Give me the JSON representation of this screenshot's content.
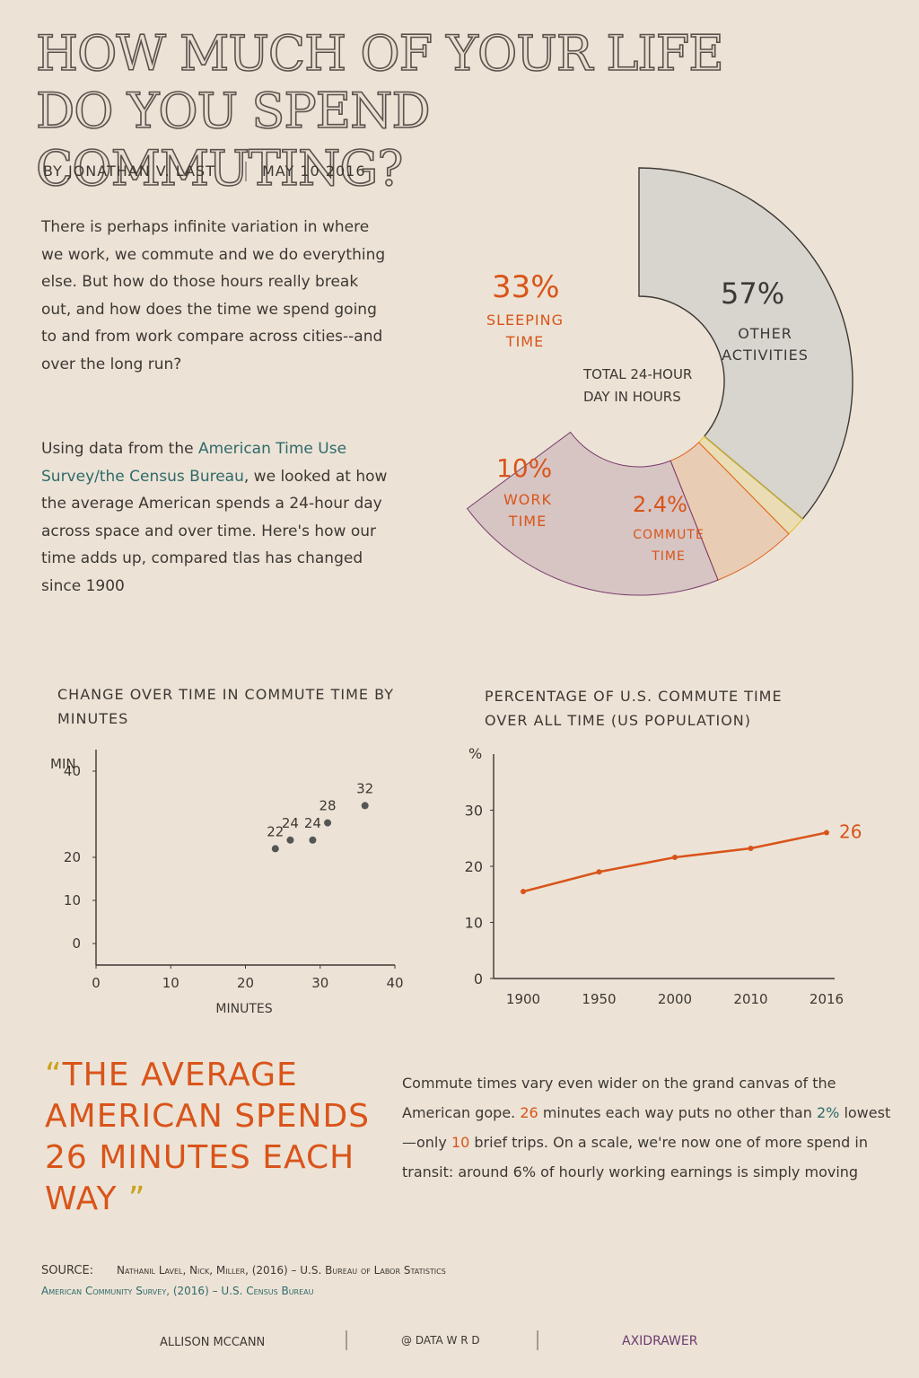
{
  "header": {
    "title": "HOW MUCH OF YOUR LIFE DO YOU SPEND COMMUTING?",
    "author": "BY JONATHAN V. LAST",
    "date": "MAY 10 2016"
  },
  "intro": {
    "paragraph_1": "There is perhaps infinite variation in where we work, we commute and we do everything else. But how do those hours really break out, and how does the time we spend going to and from work compare across cities--and over the long run?",
    "paragraph_2": {
      "part_1": "Using data from the",
      "link": "American Time Use Survey/the Census Bureau",
      "part_2": ", we looked at how the average American spends a 24-hour day across space and over time. Here's how our time adds up, compared tlas has changed since 1900"
    }
  },
  "chart_data": [
    {
      "type": "pie",
      "annotation": "TOTAL 24-HOUR DAY IN HOURS",
      "categories": [
        "SLEEPING TIME",
        "WORK TIME",
        "COMMUTE TIME",
        "OTHER ACTIVITIES"
      ],
      "values": [
        33,
        10,
        2.4,
        57
      ],
      "value_labels": [
        "33%",
        "10%",
        "2.4%",
        "57%"
      ],
      "colors": [
        "#7a3d6e",
        "#e0621c",
        "#e2c020",
        "#d8d5cf"
      ]
    },
    {
      "type": "scatter",
      "title": "CHANGE OVER TIME IN COMMUTE TIME BY MINUTES",
      "x_label": "MINUTES",
      "y_label": "MIN",
      "x": [
        24,
        26,
        29,
        31,
        36
      ],
      "values": [
        22,
        24,
        24,
        28,
        32
      ],
      "color": "#555555",
      "xlim": [
        0,
        40
      ],
      "xticks": [
        0,
        10,
        20,
        30,
        40
      ],
      "ylim": [
        -5,
        45
      ],
      "yticks": [
        0,
        10,
        20,
        40
      ]
    },
    {
      "type": "line",
      "title": "PERCENTAGE OF U.S. COMMUTE TIME OVER ALL TIME (US POPULATION)",
      "y_label": "%",
      "categories": [
        "1900",
        "1950",
        "2000",
        "2010",
        "2016"
      ],
      "values": [
        15.5,
        19,
        21.6,
        23.2,
        26
      ],
      "color": "#d9541a",
      "ylim": [
        0,
        40
      ],
      "yticks": [
        0,
        10,
        20,
        30
      ]
    }
  ],
  "quote": {
    "open": "“",
    "text": "THE AVERAGE AMERICAN SPENDS 26 MINUTES EACH WAY",
    "close": "”"
  },
  "body": {
    "part_1": "Commute times vary even wider on the grand canvas of the American gope.",
    "num_1": "26",
    "part_2": "minutes each way puts no other than",
    "num_2": "2%",
    "part_3": "lowest—only",
    "num_3": "10",
    "part_4": "brief trips. On a scale, we're now one of more spend in transit: around 6% of hourly working earnings is simply moving"
  },
  "source": {
    "label": "SOURCE:",
    "line_1": "Nathanil Lavel, Nick, Miller, (2016) – U.S. Bureau of Labor Statistics",
    "line_2": "American Community Survey, (2016) – U.S. Census Bureau"
  },
  "footer": {
    "artist": "ALLISON MCCANN",
    "handle": "@ DATA W R D",
    "tool": "AXIDRAWER"
  }
}
